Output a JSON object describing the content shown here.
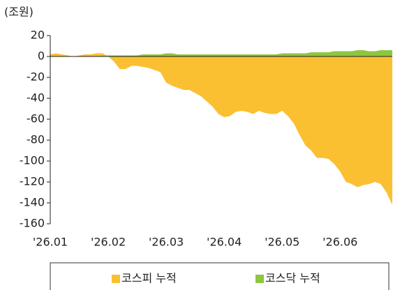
{
  "chart_data": {
    "type": "area",
    "y_axis_label": "(조원)",
    "categories": [
      "'26.01",
      null,
      null,
      null,
      null,
      null,
      null,
      null,
      null,
      null,
      "'26.02",
      null,
      null,
      null,
      null,
      null,
      null,
      null,
      null,
      null,
      "'26.03",
      null,
      null,
      null,
      null,
      null,
      null,
      null,
      null,
      null,
      "'26.04",
      null,
      null,
      null,
      null,
      null,
      null,
      null,
      null,
      null,
      "'26.05",
      null,
      null,
      null,
      null,
      null,
      null,
      null,
      null,
      null,
      "'26.06",
      null,
      null,
      null,
      null,
      null,
      null,
      null,
      null,
      null
    ],
    "series": [
      {
        "name": "코스피 누적",
        "color": "#fbbf32",
        "values": [
          2,
          3,
          2,
          1,
          0,
          1,
          2,
          2,
          3,
          3,
          0,
          -5,
          -12,
          -12,
          -9,
          -9,
          -10,
          -11,
          -13,
          -15,
          -25,
          -28,
          -30,
          -32,
          -32,
          -35,
          -38,
          -43,
          -48,
          -55,
          -58,
          -57,
          -53,
          -52,
          -53,
          -55,
          -52,
          -54,
          -55,
          -55,
          -52,
          -57,
          -64,
          -75,
          -85,
          -90,
          -97,
          -97,
          -98,
          -103,
          -110,
          -120,
          -122,
          -125,
          -123,
          -122,
          -120,
          -122,
          -130,
          -142
        ]
      },
      {
        "name": "코스닥 누적",
        "color": "#8dc63f",
        "values": [
          0,
          0,
          0,
          0,
          0,
          0,
          0,
          0,
          0,
          1,
          1,
          1,
          1,
          1,
          1,
          1,
          2,
          2,
          2,
          2,
          3,
          3,
          2,
          2,
          2,
          2,
          2,
          2,
          2,
          2,
          2,
          2,
          2,
          2,
          2,
          2,
          2,
          2,
          2,
          2,
          3,
          3,
          3,
          3,
          3,
          4,
          4,
          4,
          4,
          5,
          5,
          5,
          5,
          6,
          6,
          5,
          5,
          6,
          6,
          6
        ]
      }
    ],
    "ylim": [
      -160,
      20
    ],
    "yticks": [
      20,
      0,
      -20,
      -40,
      -60,
      -80,
      -100,
      -120,
      -140,
      -160
    ]
  }
}
